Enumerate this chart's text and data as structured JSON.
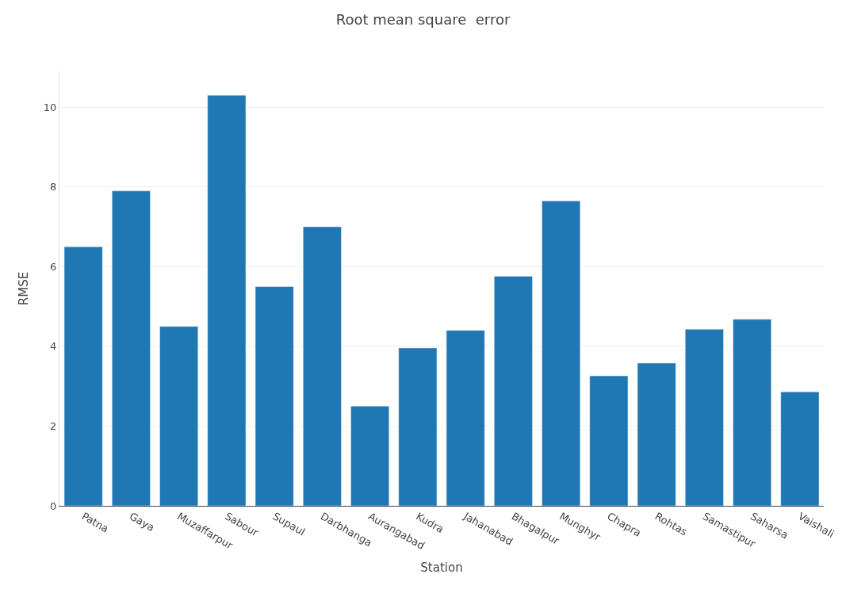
{
  "chart_data": {
    "type": "bar",
    "title": "Root mean square  error",
    "xlabel": "Station",
    "ylabel": "RMSE",
    "categories": [
      "Patna",
      "Gaya",
      "Muzaffarpur",
      "Sabour",
      "Supaul",
      "Darbhanga",
      "Aurangabad",
      "Kudra",
      "Jahanabad",
      "Bhagalpur",
      "Munghyr",
      "Chapra",
      "Rohtas",
      "Samastipur",
      "Saharsa",
      "Vaishali"
    ],
    "values": [
      6.5,
      7.9,
      4.5,
      10.3,
      5.5,
      7.0,
      2.5,
      3.96,
      4.4,
      5.76,
      7.65,
      3.26,
      3.58,
      4.43,
      4.68,
      2.86
    ],
    "color": "#1f77b4",
    "ylim": [
      0,
      10.9
    ],
    "yticks": [
      0,
      2,
      4,
      6,
      8,
      10
    ],
    "grid": "y"
  }
}
